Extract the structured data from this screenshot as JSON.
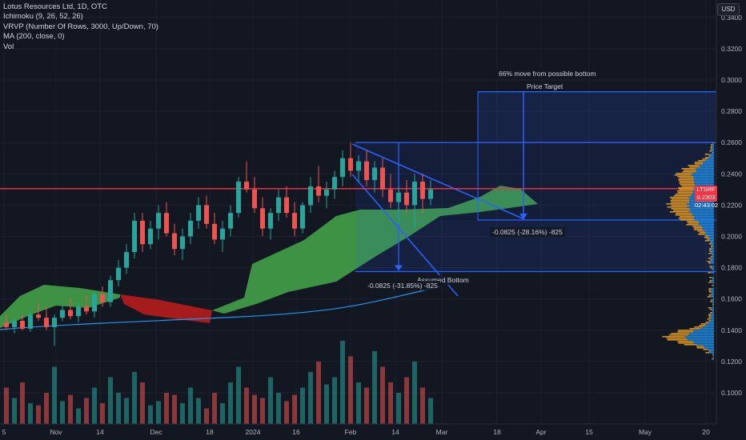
{
  "legend": {
    "title": "Lotus Resources Ltd, 1D, OTC",
    "ichimoku": "Ichimoku (9, 26, 52, 26)",
    "vrvp": "VRVP (Number Of Rows, 3000, Up/Down, 70)",
    "ma": "MA (200, close, 0)",
    "vol": "Vol"
  },
  "currency": "USD",
  "price_tag": {
    "symbol": "LTSRF",
    "price": "0.2303",
    "countdown": "02:43:02"
  },
  "annotations": {
    "move_text": "66% move from possible bottom",
    "price_target": "Price Target",
    "assumed_bottom": "Assumed Bottom",
    "measure_1": "-0.0825 (-28.16%) -825",
    "measure_2": "-0.0825 (-31.85%) -825"
  },
  "colors": {
    "background": "#131722",
    "up": "#26a69a",
    "down": "#ef5350",
    "cloud_bull": "#43a047",
    "cloud_bear": "#b71c1c",
    "projection": "#2962ff",
    "resistance": "#f23645",
    "ma": "#2196f3",
    "volume_profile_up": "#2196f3",
    "volume_profile_down": "#f5a623"
  },
  "chart_data": {
    "type": "candlestick",
    "x_tick_labels": [
      "5",
      "Nov",
      "14",
      "Dec",
      "18",
      "2024",
      "16",
      "Feb",
      "14",
      "Mar",
      "18",
      "Apr",
      "15",
      "May",
      "20"
    ],
    "y_tick_labels": [
      "0.1000",
      "0.1200",
      "0.1400",
      "0.1600",
      "0.1800",
      "0.2000",
      "0.2200",
      "0.2400",
      "0.2600",
      "0.2800",
      "0.3000",
      "0.3200",
      "0.3400"
    ],
    "ylim": [
      0.083,
      0.347
    ],
    "series": [
      {
        "name": "LTSRF",
        "ohlc": [
          [
            0.145,
            0.15,
            0.14,
            0.142
          ],
          [
            0.142,
            0.148,
            0.138,
            0.146
          ],
          [
            0.146,
            0.15,
            0.14,
            0.141
          ],
          [
            0.141,
            0.152,
            0.139,
            0.15
          ],
          [
            0.15,
            0.158,
            0.146,
            0.148
          ],
          [
            0.148,
            0.155,
            0.14,
            0.142
          ],
          [
            0.142,
            0.15,
            0.13,
            0.148
          ],
          [
            0.148,
            0.156,
            0.146,
            0.153
          ],
          [
            0.153,
            0.16,
            0.147,
            0.149
          ],
          [
            0.149,
            0.158,
            0.145,
            0.155
          ],
          [
            0.155,
            0.162,
            0.15,
            0.152
          ],
          [
            0.152,
            0.165,
            0.148,
            0.163
          ],
          [
            0.163,
            0.168,
            0.155,
            0.158
          ],
          [
            0.158,
            0.175,
            0.155,
            0.172
          ],
          [
            0.172,
            0.185,
            0.168,
            0.18
          ],
          [
            0.18,
            0.195,
            0.176,
            0.19
          ],
          [
            0.19,
            0.215,
            0.186,
            0.21
          ],
          [
            0.21,
            0.215,
            0.19,
            0.195
          ],
          [
            0.195,
            0.21,
            0.192,
            0.205
          ],
          [
            0.205,
            0.22,
            0.198,
            0.215
          ],
          [
            0.215,
            0.222,
            0.2,
            0.202
          ],
          [
            0.202,
            0.208,
            0.188,
            0.192
          ],
          [
            0.192,
            0.205,
            0.185,
            0.2
          ],
          [
            0.2,
            0.215,
            0.195,
            0.21
          ],
          [
            0.21,
            0.225,
            0.205,
            0.22
          ],
          [
            0.22,
            0.226,
            0.205,
            0.208
          ],
          [
            0.208,
            0.215,
            0.195,
            0.198
          ],
          [
            0.198,
            0.21,
            0.19,
            0.205
          ],
          [
            0.205,
            0.22,
            0.2,
            0.215
          ],
          [
            0.215,
            0.238,
            0.212,
            0.235
          ],
          [
            0.235,
            0.248,
            0.228,
            0.23
          ],
          [
            0.23,
            0.238,
            0.215,
            0.218
          ],
          [
            0.218,
            0.225,
            0.2,
            0.205
          ],
          [
            0.205,
            0.218,
            0.198,
            0.215
          ],
          [
            0.215,
            0.23,
            0.21,
            0.225
          ],
          [
            0.225,
            0.232,
            0.212,
            0.215
          ],
          [
            0.215,
            0.222,
            0.2,
            0.205
          ],
          [
            0.205,
            0.222,
            0.202,
            0.22
          ],
          [
            0.22,
            0.238,
            0.215,
            0.232
          ],
          [
            0.232,
            0.245,
            0.222,
            0.226
          ],
          [
            0.226,
            0.235,
            0.218,
            0.23
          ],
          [
            0.23,
            0.242,
            0.224,
            0.238
          ],
          [
            0.238,
            0.255,
            0.232,
            0.25
          ],
          [
            0.25,
            0.26,
            0.238,
            0.242
          ],
          [
            0.242,
            0.252,
            0.235,
            0.248
          ],
          [
            0.248,
            0.255,
            0.232,
            0.236
          ],
          [
            0.236,
            0.248,
            0.228,
            0.244
          ],
          [
            0.244,
            0.25,
            0.225,
            0.23
          ],
          [
            0.23,
            0.24,
            0.218,
            0.222
          ],
          [
            0.222,
            0.232,
            0.208,
            0.228
          ],
          [
            0.228,
            0.236,
            0.215,
            0.22
          ],
          [
            0.22,
            0.24,
            0.205,
            0.235
          ],
          [
            0.235,
            0.24,
            0.215,
            0.224
          ],
          [
            0.224,
            0.236,
            0.22,
            0.23
          ]
        ]
      },
      {
        "name": "Vol",
        "values": [
          35,
          25,
          40,
          20,
          18,
          30,
          55,
          22,
          28,
          15,
          25,
          35,
          20,
          45,
          30,
          25,
          50,
          40,
          18,
          22,
          30,
          28,
          20,
          35,
          25,
          15,
          30,
          20,
          40,
          55,
          35,
          28,
          25,
          45,
          30,
          22,
          28,
          35,
          50,
          60,
          38,
          45,
          80,
          65,
          40,
          35,
          70,
          55,
          40,
          30,
          45,
          60,
          35,
          25
        ]
      }
    ],
    "levels": {
      "resistance": 0.2303,
      "top": 0.26,
      "target": 0.2925,
      "mid": 0.2105,
      "assumed_bottom": 0.1775
    },
    "grid": true,
    "legend_position": "top-left"
  }
}
